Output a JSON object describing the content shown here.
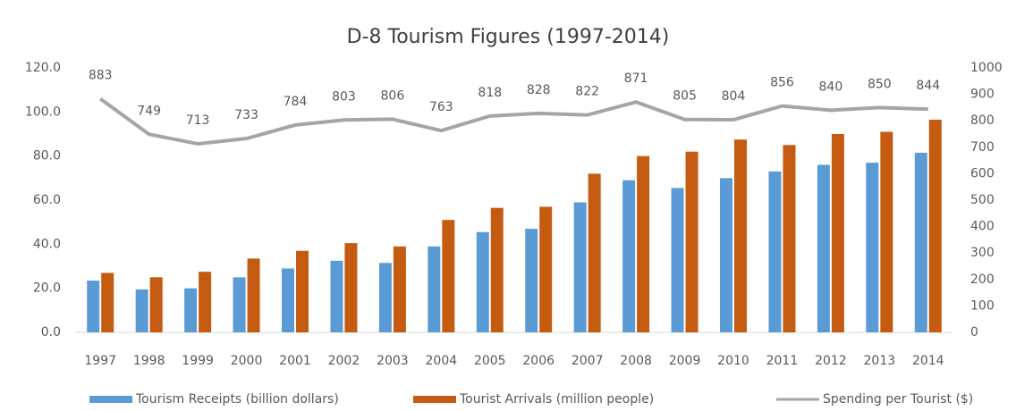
{
  "chart_data": {
    "type": "bar_line",
    "title": "D-8 Tourism Figures (1997-2014)",
    "categories": [
      "1997",
      "1998",
      "1999",
      "2000",
      "2001",
      "2002",
      "2003",
      "2004",
      "2005",
      "2006",
      "2007",
      "2008",
      "2009",
      "2010",
      "2011",
      "2012",
      "2013",
      "2014"
    ],
    "series": [
      {
        "name": "Tourism Receipts (billion dollars)",
        "color": "#5b9bd5",
        "type": "bar",
        "values": [
          23.5,
          19.5,
          20,
          25,
          29,
          32.5,
          31.5,
          39,
          45.5,
          47,
          59,
          69,
          65.5,
          70,
          73,
          76,
          77,
          81.5
        ]
      },
      {
        "name": "Tourist Arrivals (million people)",
        "color": "#c55a11",
        "type": "bar",
        "values": [
          27,
          25,
          27.5,
          33.5,
          37,
          40.5,
          39,
          51,
          56.5,
          57,
          72,
          80,
          82,
          87.5,
          85,
          90,
          91,
          96.5
        ]
      },
      {
        "name": "Spending per Tourist ($)",
        "color": "#a5a5a5",
        "type": "line",
        "axis": "y2",
        "values": [
          883,
          749,
          713,
          733,
          784,
          803,
          806,
          763,
          818,
          828,
          822,
          871,
          805,
          804,
          856,
          840,
          850,
          844
        ]
      }
    ],
    "ylim": [
      0,
      120
    ],
    "yticks": [
      {
        "value": 0,
        "label": "0.0"
      },
      {
        "value": 20,
        "label": "20.0"
      },
      {
        "value": 40,
        "label": "40.0"
      },
      {
        "value": 60,
        "label": "60.0"
      },
      {
        "value": 80,
        "label": "80.0"
      },
      {
        "value": 100,
        "label": "100.0"
      },
      {
        "value": 120,
        "label": "120.0"
      }
    ],
    "y2lim": [
      0,
      1000
    ],
    "y2ticks": [
      0,
      100,
      200,
      300,
      400,
      500,
      600,
      700,
      800,
      900,
      1000
    ],
    "grid": false,
    "legend": "bottom"
  }
}
